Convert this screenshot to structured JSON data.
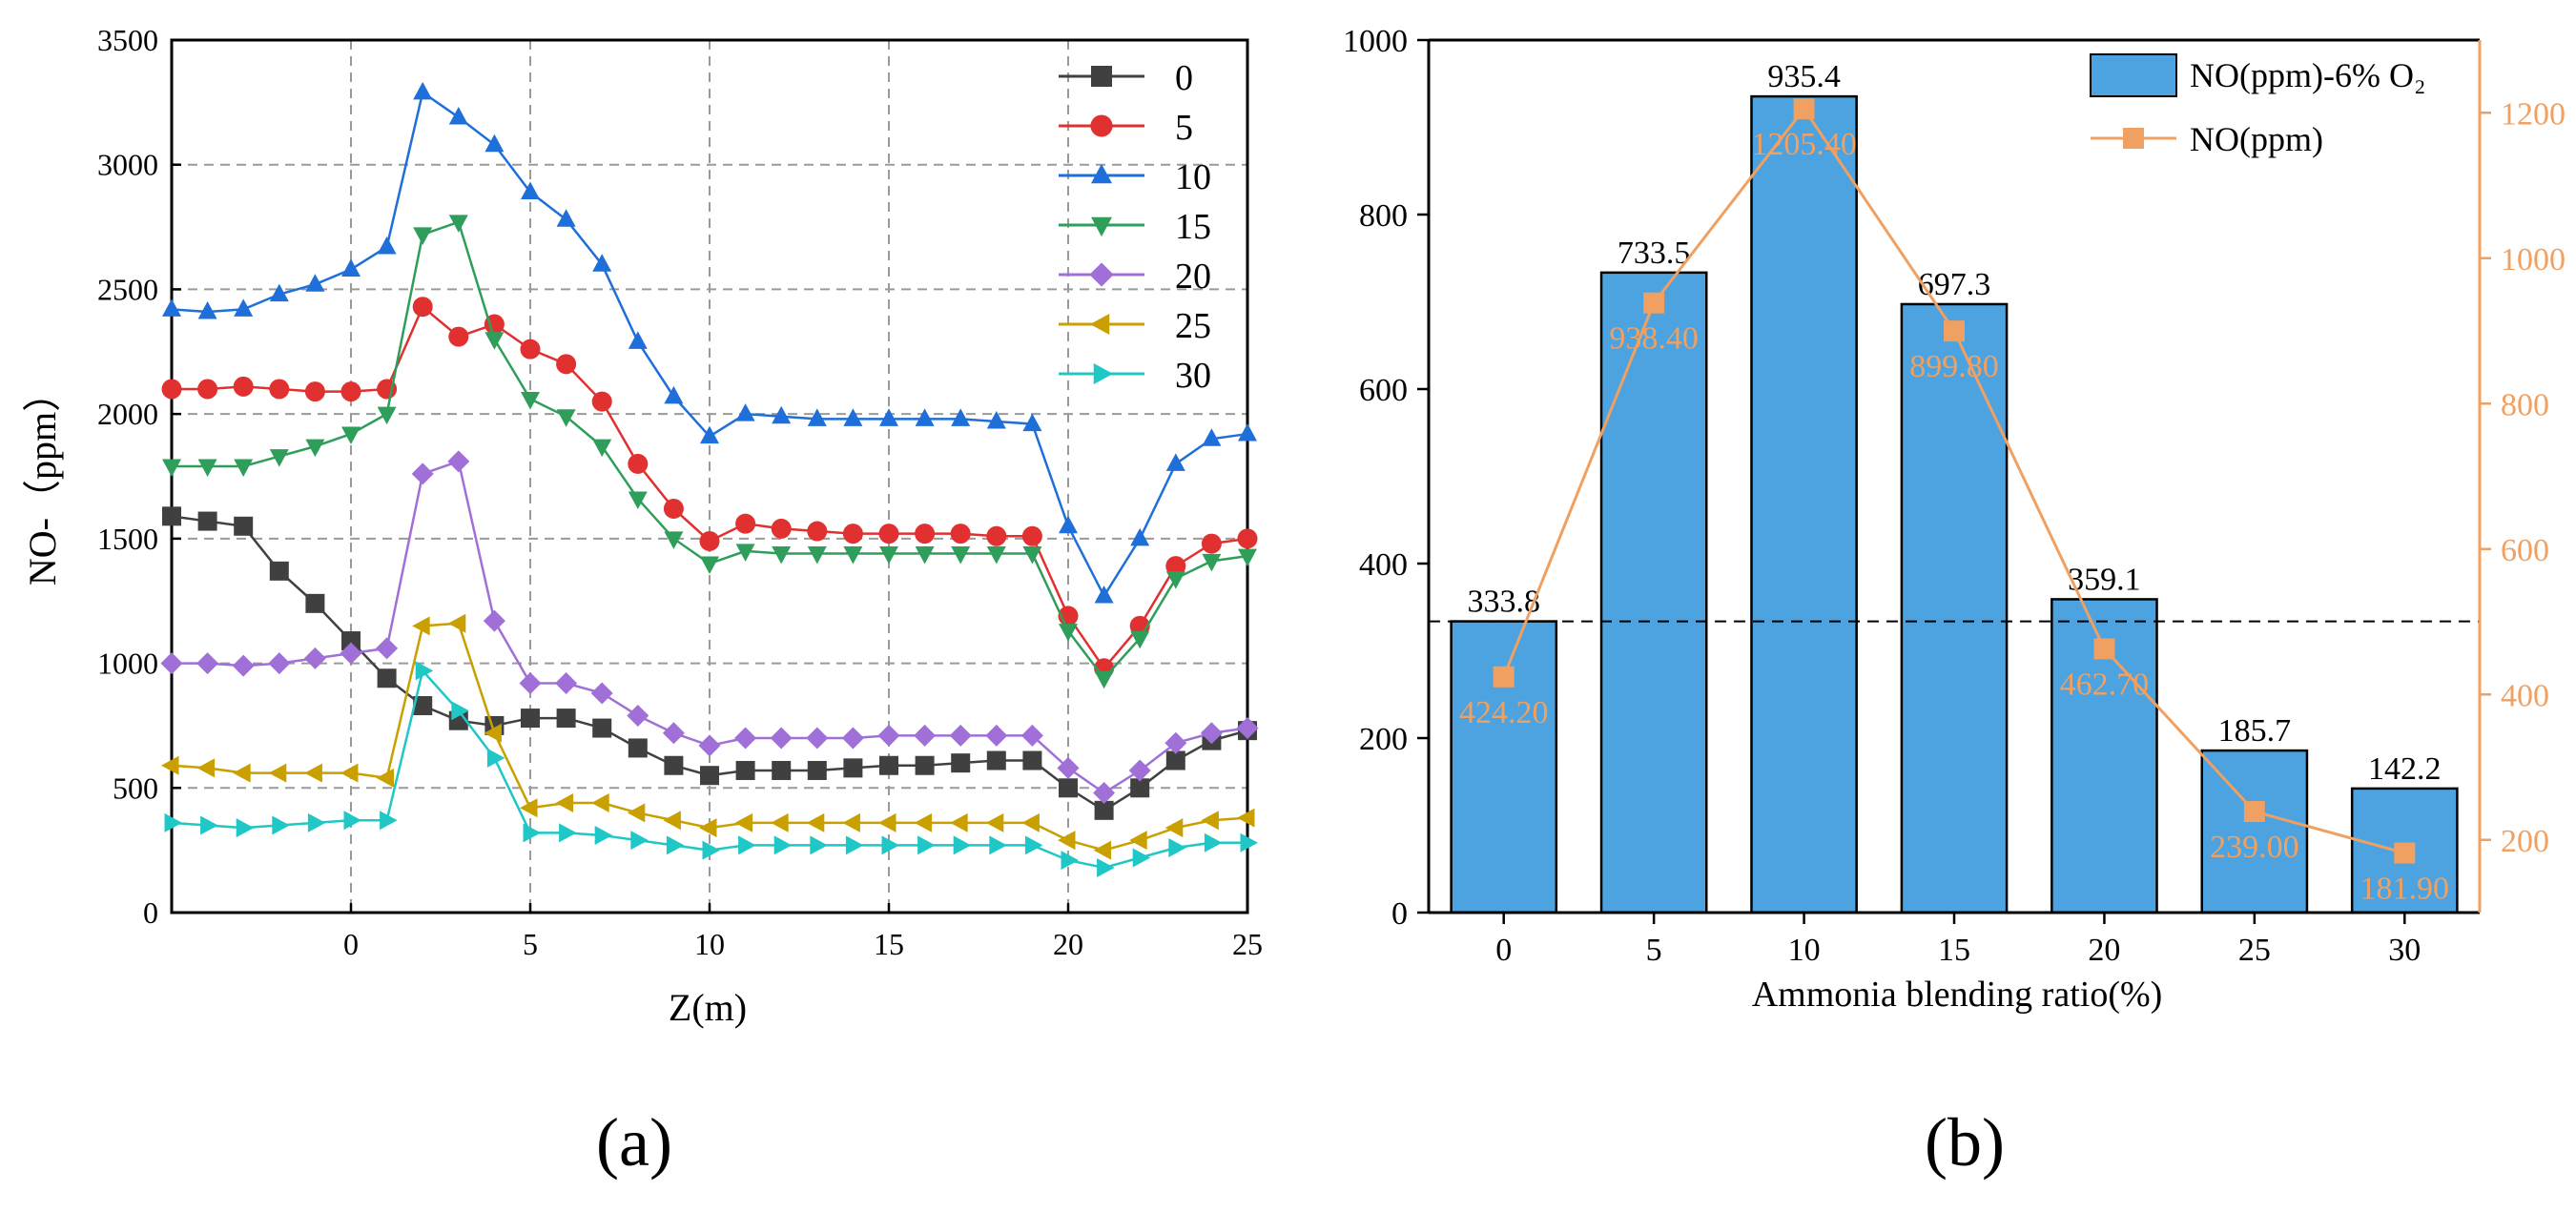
{
  "figure": {
    "panel_a_label": "(a)",
    "panel_b_label": "(b)"
  },
  "chart_data": [
    {
      "type": "line",
      "panel": "(a)",
      "xlabel": "Z(m)",
      "ylabel": "NO-（ppm）",
      "xlim": [
        -5,
        25
      ],
      "ylim": [
        0,
        3500
      ],
      "xticks": [
        0,
        5,
        10,
        15,
        20,
        25
      ],
      "yticks": [
        0,
        500,
        1000,
        1500,
        2000,
        2500,
        3000,
        3500
      ],
      "grid": true,
      "legend_position": "top-right",
      "x": [
        -5,
        -4,
        -3,
        -2,
        -1,
        0,
        1,
        2,
        3,
        4,
        5,
        6,
        7,
        8,
        9,
        10,
        11,
        12,
        13,
        14,
        15,
        16,
        17,
        18,
        19,
        20,
        21,
        22,
        23,
        24,
        25
      ],
      "series": [
        {
          "name": "0",
          "color": "#404040",
          "marker": "square",
          "values": [
            1590,
            1570,
            1550,
            1370,
            1240,
            1090,
            940,
            830,
            770,
            750,
            780,
            780,
            740,
            660,
            590,
            550,
            570,
            570,
            570,
            580,
            590,
            590,
            600,
            610,
            610,
            500,
            410,
            500,
            610,
            690,
            730
          ]
        },
        {
          "name": "5",
          "color": "#e03030",
          "marker": "circle",
          "values": [
            2100,
            2100,
            2110,
            2100,
            2090,
            2090,
            2100,
            2430,
            2310,
            2360,
            2260,
            2200,
            2050,
            1800,
            1620,
            1490,
            1560,
            1540,
            1530,
            1520,
            1520,
            1520,
            1520,
            1510,
            1510,
            1190,
            980,
            1150,
            1390,
            1480,
            1500
          ]
        },
        {
          "name": "10",
          "color": "#1e6fd9",
          "marker": "triangle-up",
          "values": [
            2420,
            2410,
            2420,
            2480,
            2520,
            2580,
            2670,
            3290,
            3190,
            3080,
            2890,
            2780,
            2600,
            2290,
            2070,
            1910,
            2000,
            1990,
            1980,
            1980,
            1980,
            1980,
            1980,
            1970,
            1960,
            1550,
            1270,
            1500,
            1800,
            1900,
            1920
          ]
        },
        {
          "name": "15",
          "color": "#2e9e5a",
          "marker": "triangle-down",
          "values": [
            1790,
            1790,
            1790,
            1830,
            1870,
            1920,
            2000,
            2720,
            2770,
            2300,
            2060,
            1990,
            1870,
            1660,
            1500,
            1400,
            1450,
            1440,
            1440,
            1440,
            1440,
            1440,
            1440,
            1440,
            1440,
            1130,
            940,
            1100,
            1340,
            1410,
            1430
          ]
        },
        {
          "name": "20",
          "color": "#a070d8",
          "marker": "diamond",
          "values": [
            1000,
            1000,
            990,
            1000,
            1020,
            1040,
            1060,
            1760,
            1810,
            1170,
            920,
            920,
            880,
            790,
            720,
            670,
            700,
            700,
            700,
            700,
            710,
            710,
            710,
            710,
            710,
            580,
            480,
            570,
            680,
            720,
            740
          ]
        },
        {
          "name": "25",
          "color": "#c9a000",
          "marker": "triangle-left",
          "values": [
            590,
            580,
            560,
            560,
            560,
            560,
            540,
            1150,
            1160,
            720,
            420,
            440,
            440,
            400,
            370,
            340,
            360,
            360,
            360,
            360,
            360,
            360,
            360,
            360,
            360,
            290,
            250,
            290,
            340,
            370,
            380
          ]
        },
        {
          "name": "30",
          "color": "#1fc7c7",
          "marker": "triangle-right",
          "values": [
            360,
            350,
            340,
            350,
            360,
            370,
            370,
            970,
            810,
            620,
            320,
            320,
            310,
            290,
            270,
            250,
            270,
            270,
            270,
            270,
            270,
            270,
            270,
            270,
            270,
            210,
            180,
            220,
            260,
            280,
            280
          ]
        }
      ]
    },
    {
      "type": "bar",
      "panel": "(b)",
      "xlabel": "Ammonia blending ratio(%)",
      "categories": [
        "0",
        "5",
        "10",
        "15",
        "20",
        "25",
        "30"
      ],
      "ylim_left": [
        0,
        1000
      ],
      "yticks_left": [
        0,
        200,
        400,
        600,
        800,
        1000
      ],
      "ylim_right": [
        100,
        1300
      ],
      "yticks_right": [
        200,
        400,
        600,
        800,
        1000,
        1200
      ],
      "reference_line_left": 333.8,
      "legend_position": "top-right",
      "series": [
        {
          "name": "NO(ppm)-6% O₂",
          "type": "bar",
          "axis": "left",
          "color": "#4da3e0",
          "values": [
            333.8,
            733.5,
            935.4,
            697.3,
            359.1,
            185.7,
            142.2
          ],
          "labels": [
            "333.8",
            "733.5",
            "935.4",
            "697.3",
            "359.1",
            "185.7",
            "142.2"
          ]
        },
        {
          "name": "NO(ppm)",
          "type": "line",
          "axis": "right",
          "color": "#f0a060",
          "marker": "square",
          "values": [
            424.2,
            938.4,
            1205.4,
            899.8,
            462.7,
            239.0,
            181.9
          ],
          "labels": [
            "424.20",
            "938.40",
            "1205.40",
            "899.80",
            "462.70",
            "239.00",
            "181.90"
          ]
        }
      ]
    }
  ]
}
